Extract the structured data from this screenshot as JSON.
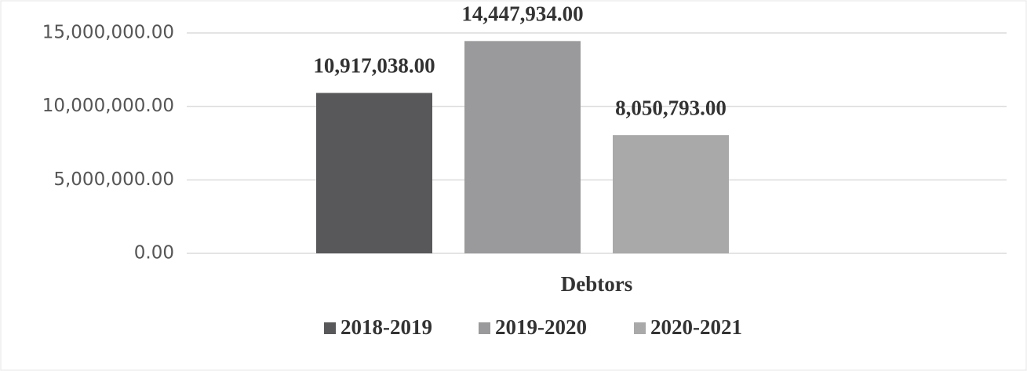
{
  "chart_data": {
    "type": "bar",
    "categories": [
      "Debtors"
    ],
    "series": [
      {
        "name": "2018-2019",
        "color": "#58585a",
        "values": [
          10917038
        ],
        "value_labels": [
          "10,917,038.00"
        ]
      },
      {
        "name": "2019-2020",
        "color": "#9a9a9c",
        "values": [
          14447934
        ],
        "value_labels": [
          "14,447,934.00"
        ]
      },
      {
        "name": "2020-2021",
        "color": "#a9a9aa",
        "values": [
          8050793
        ],
        "value_labels": [
          "8,050,793.00"
        ]
      }
    ],
    "ylim": [
      0,
      15000000
    ],
    "yticks": [
      {
        "value": 0,
        "label": "0.00"
      },
      {
        "value": 5000000,
        "label": "5,000,000.00"
      },
      {
        "value": 10000000,
        "label": "10,000,000.00"
      },
      {
        "value": 15000000,
        "label": "15,000,000.00"
      }
    ],
    "grid": true,
    "legend": "bottom"
  }
}
